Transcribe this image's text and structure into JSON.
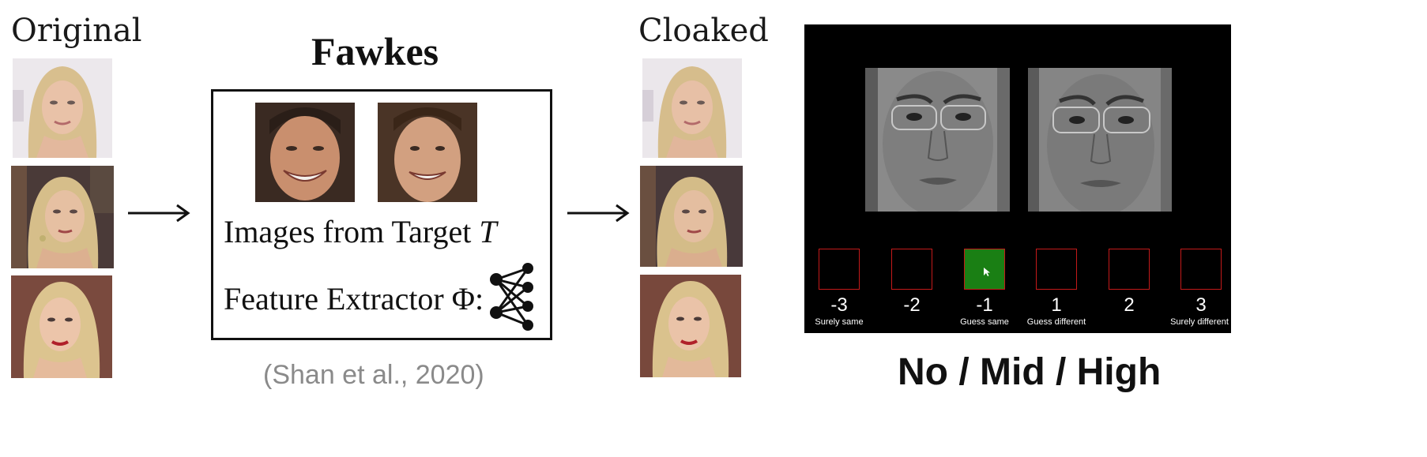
{
  "original_label": "Original",
  "cloaked_label": "Cloaked",
  "fawkes": {
    "title": "Fawkes",
    "target_text": "Images from Target ",
    "target_symbol": "T",
    "extractor_text": "Feature Extractor Φ:"
  },
  "citation": "(Shan et al., 2020)",
  "rating_scale": {
    "options": [
      {
        "value": "-3",
        "label": "Surely same",
        "selected": false
      },
      {
        "value": "-2",
        "label": "",
        "selected": false
      },
      {
        "value": "-1",
        "label": "Guess same",
        "selected": true
      },
      {
        "value": "1",
        "label": "Guess different",
        "selected": false
      },
      {
        "value": "2",
        "label": "",
        "selected": false
      },
      {
        "value": "3",
        "label": "Surely different",
        "selected": false
      }
    ],
    "selected_color": "#1a7f14",
    "box_border_color": "#c41a1a"
  },
  "levels_caption": "No / Mid / High"
}
